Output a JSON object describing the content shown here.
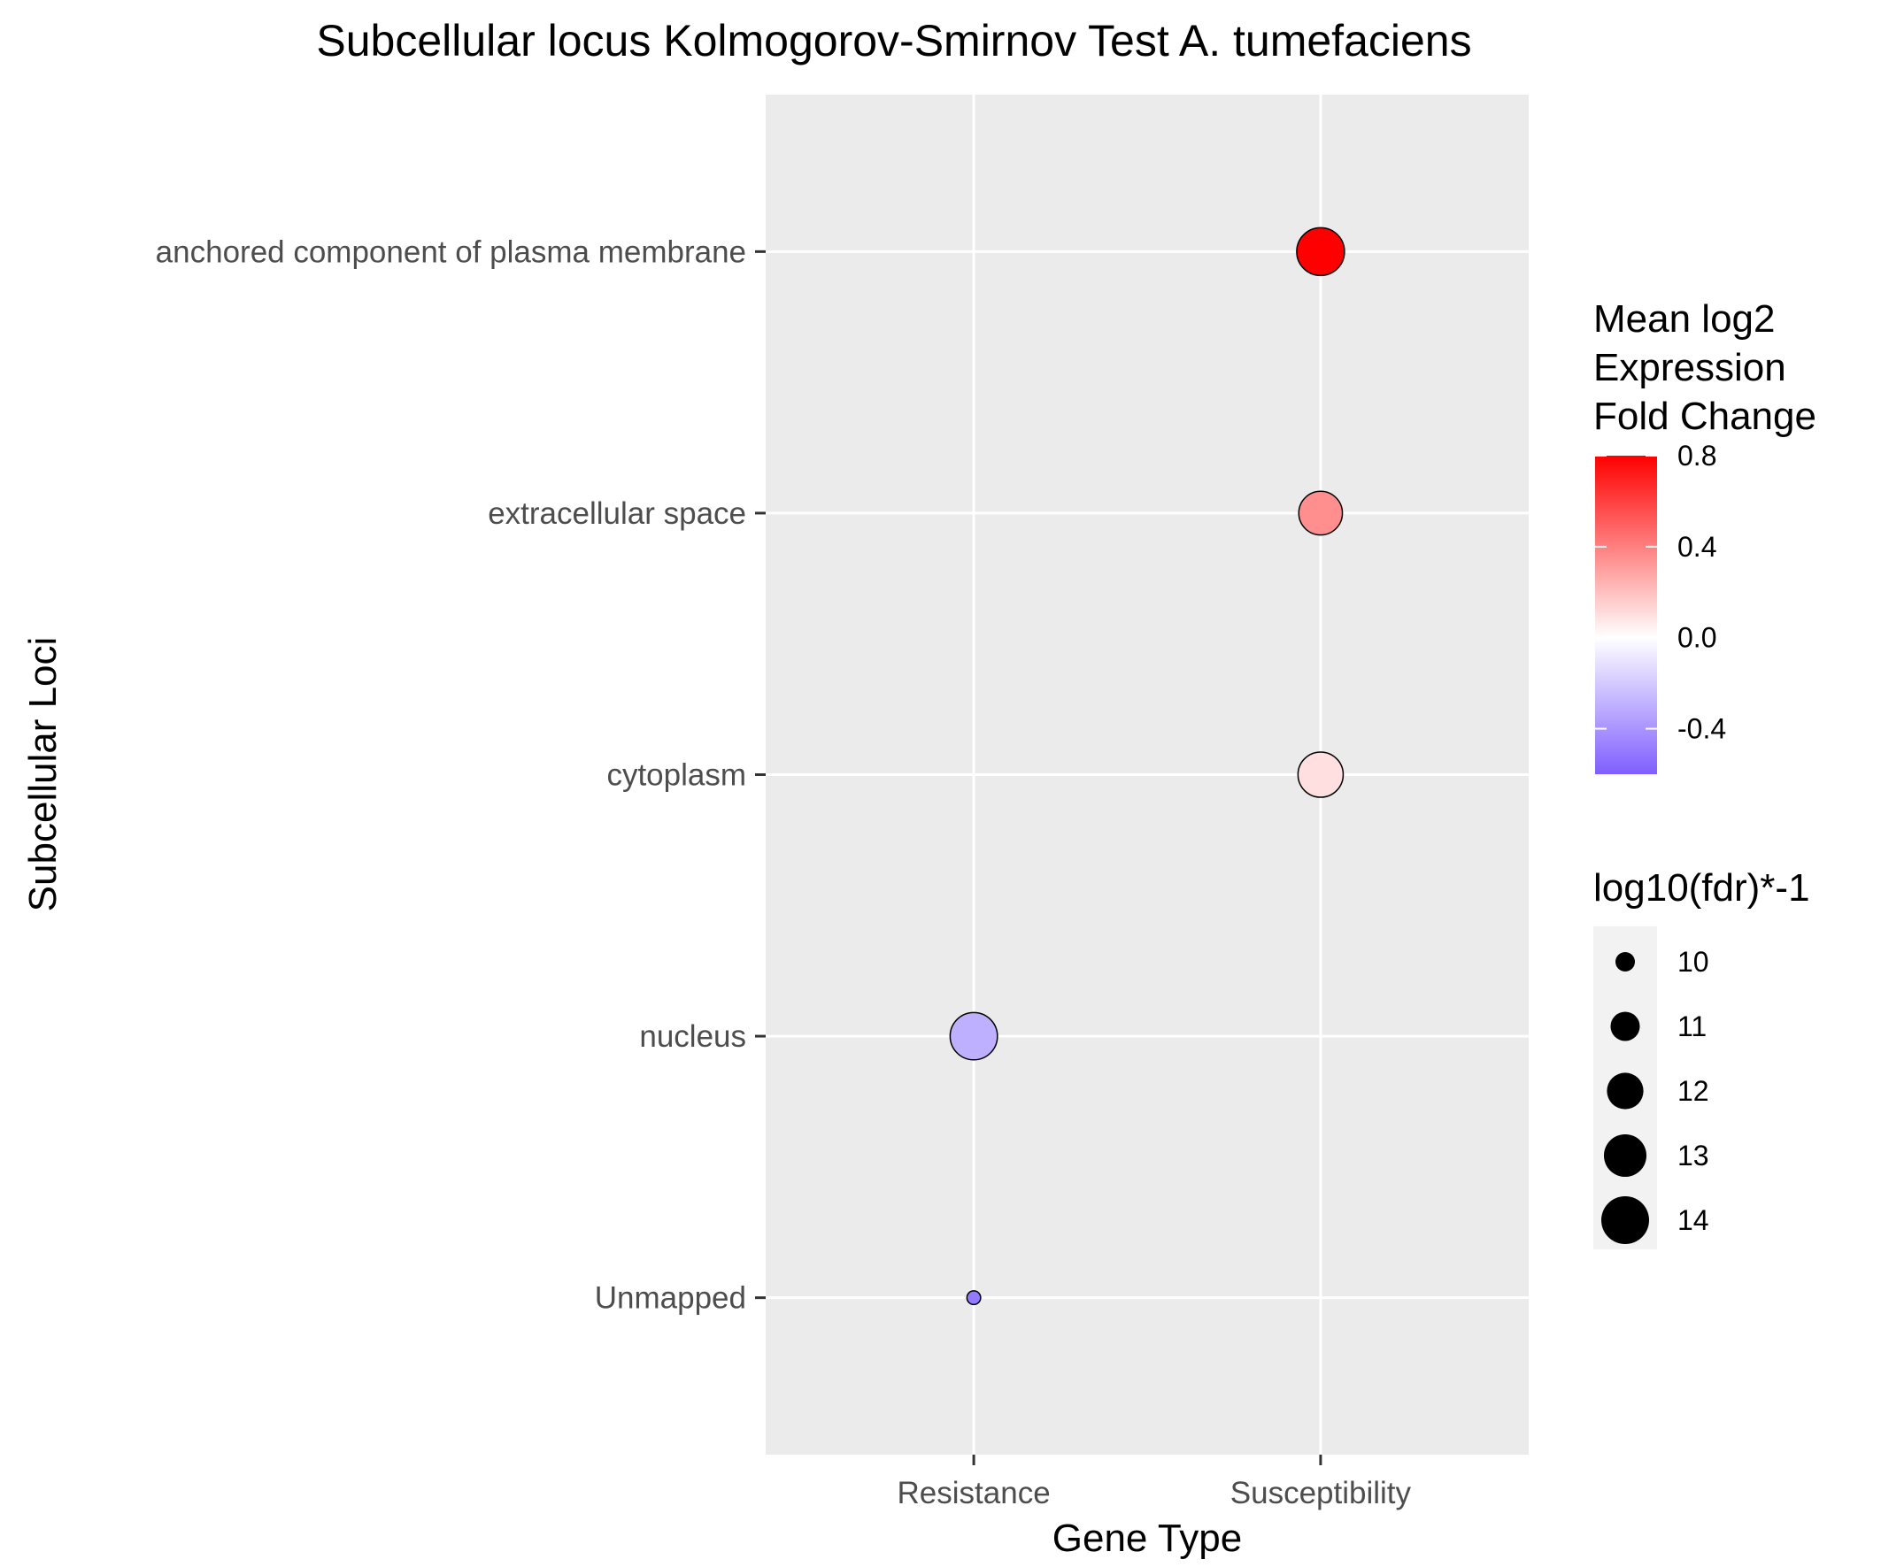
{
  "chart_data": {
    "type": "scatter",
    "title": "Subcellular locus Kolmogorov-Smirnov Test A. tumefaciens",
    "xlabel": "Gene Type",
    "ylabel": "Subcellular Loci",
    "x_categories": [
      "Resistance",
      "Susceptibility"
    ],
    "y_categories": [
      "anchored component of plasma membrane",
      "extracellular space",
      "cytoplasm",
      "nucleus",
      "Unmapped"
    ],
    "points": [
      {
        "x": "Susceptibility",
        "y": "anchored component of plasma membrane",
        "fold_change": 0.8,
        "neg_log10_fdr": 14.0
      },
      {
        "x": "Susceptibility",
        "y": "extracellular space",
        "fold_change": 0.35,
        "neg_log10_fdr": 13.2
      },
      {
        "x": "Susceptibility",
        "y": "cytoplasm",
        "fold_change": 0.1,
        "neg_log10_fdr": 13.5
      },
      {
        "x": "Resistance",
        "y": "nucleus",
        "fold_change": -0.3,
        "neg_log10_fdr": 13.9
      },
      {
        "x": "Resistance",
        "y": "Unmapped",
        "fold_change": -0.5,
        "neg_log10_fdr": 9.6
      }
    ],
    "color_legend": {
      "title_lines": [
        "Mean log2",
        "Expression",
        "Fold Change"
      ],
      "range": [
        -0.6,
        0.8
      ],
      "breaks": [
        0.8,
        0.4,
        0.0,
        -0.4
      ],
      "break_labels": [
        "0.8",
        "0.4",
        "0.0",
        "-0.4"
      ],
      "low_color": "#7f5fff",
      "mid_color": "#ffffff",
      "high_color": "#ff0000"
    },
    "size_legend": {
      "title": "log10(fdr)*-1",
      "breaks": [
        10,
        11,
        12,
        13,
        14
      ],
      "break_labels": [
        "10",
        "11",
        "12",
        "13",
        "14"
      ]
    },
    "panel_background": "#ebebeb",
    "grid_color": "#ffffff"
  }
}
